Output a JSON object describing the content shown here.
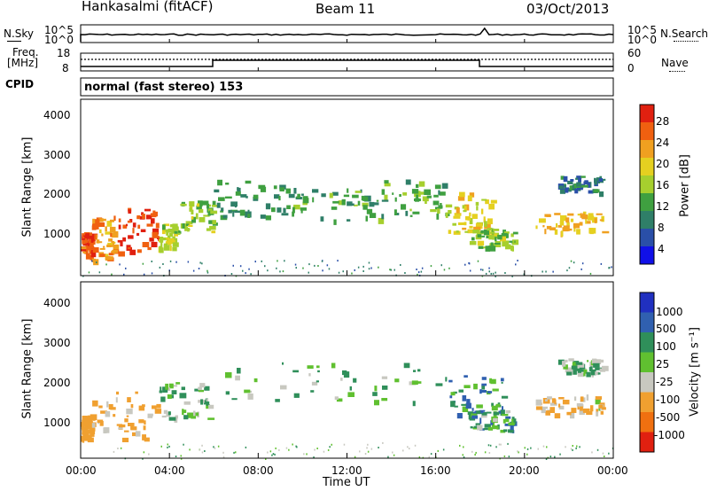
{
  "header": {
    "station": "Hankasalmi (fitACF)",
    "beam": "Beam 11",
    "date": "03/Oct/2013"
  },
  "noise_panel": {
    "left_label": "N.Sky",
    "right_label": "N.Search",
    "ticks": [
      "10^5",
      "10^0"
    ]
  },
  "freq_panel": {
    "left_label_1": "Freq.",
    "left_label_2": "[MHz]",
    "left_ticks": [
      "18",
      "8"
    ],
    "right_ticks": [
      "60",
      "0"
    ],
    "right_label": "Nave",
    "cpid_label": "CPID",
    "mode": "normal (fast stereo) 153"
  },
  "time_axis": {
    "ticks": [
      "00:00",
      "04:00",
      "08:00",
      "12:00",
      "16:00",
      "20:00",
      "00:00"
    ],
    "label": "Time UT"
  },
  "chart_data": [
    {
      "type": "heatmap",
      "name": "power",
      "ylabel": "Slant Range [km]",
      "yticks": [
        "1000",
        "2000",
        "3000",
        "4000"
      ],
      "ylim": [
        200,
        4600
      ],
      "xlim": [
        0,
        24
      ],
      "colorbar": {
        "label": "Power [dB]",
        "ticks": [
          "4",
          "8",
          "12",
          "16",
          "20",
          "24",
          "28"
        ],
        "range": [
          0,
          30
        ],
        "colors": [
          "#1010e8",
          "#2a4fa8",
          "#2f7f68",
          "#3fa040",
          "#a6cf2e",
          "#e5d020",
          "#f0a020",
          "#f06010",
          "#e02010"
        ]
      },
      "regions": [
        {
          "t0": 0.0,
          "t1": 0.5,
          "r0": 700,
          "r1": 1300,
          "value": 26
        },
        {
          "t0": 0.5,
          "t1": 1.5,
          "r0": 600,
          "r1": 1700,
          "value": 22
        },
        {
          "t0": 1.5,
          "t1": 3.5,
          "r0": 800,
          "r1": 1900,
          "value": 27
        },
        {
          "t0": 3.5,
          "t1": 4.2,
          "r0": 900,
          "r1": 1500,
          "value": 16
        },
        {
          "t0": 4.2,
          "t1": 6.0,
          "r0": 1300,
          "r1": 2100,
          "value": 14
        },
        {
          "t0": 6.0,
          "t1": 9.5,
          "r0": 1700,
          "r1": 2600,
          "value": 10
        },
        {
          "t0": 9.5,
          "t1": 13.5,
          "r0": 1600,
          "r1": 2400,
          "value": 11
        },
        {
          "t0": 13.5,
          "t1": 16.5,
          "r0": 1700,
          "r1": 2600,
          "value": 12
        },
        {
          "t0": 16.5,
          "t1": 18.5,
          "r0": 1300,
          "r1": 2300,
          "value": 18
        },
        {
          "t0": 17.5,
          "t1": 19.5,
          "r0": 900,
          "r1": 1400,
          "value": 14
        },
        {
          "t0": 20.5,
          "t1": 23.5,
          "r0": 1300,
          "r1": 1800,
          "value": 20
        },
        {
          "t0": 21.5,
          "t1": 23.5,
          "r0": 2300,
          "r1": 2700,
          "value": 8
        }
      ]
    },
    {
      "type": "heatmap",
      "name": "velocity",
      "ylabel": "Slant Range [km]",
      "yticks": [
        "1000",
        "2000",
        "3000",
        "4000"
      ],
      "ylim": [
        200,
        4600
      ],
      "xlim": [
        0,
        24
      ],
      "colorbar": {
        "label": "Velocity [m s⁻¹]",
        "ticks": [
          "1000",
          "500",
          "100",
          "25",
          "-25",
          "-100",
          "-500",
          "-1000"
        ],
        "colors": [
          "#2030c0",
          "#3060b0",
          "#2f8f5a",
          "#60c030",
          "#c8c8c0",
          "#f0a030",
          "#f07010",
          "#e02010"
        ]
      },
      "regions": [
        {
          "t0": 0.0,
          "t1": 0.5,
          "r0": 700,
          "r1": 1300,
          "value": -300
        },
        {
          "t0": 0.5,
          "t1": 3.5,
          "r0": 700,
          "r1": 1900,
          "value": -150
        },
        {
          "t0": 3.5,
          "t1": 6.0,
          "r0": 1200,
          "r1": 2100,
          "value": 0
        },
        {
          "t0": 6.0,
          "t1": 16.5,
          "r0": 1600,
          "r1": 2600,
          "value": 0
        },
        {
          "t0": 16.5,
          "t1": 19.0,
          "r0": 1300,
          "r1": 2300,
          "value": 80
        },
        {
          "t0": 17.5,
          "t1": 19.5,
          "r0": 900,
          "r1": 1400,
          "value": 60
        },
        {
          "t0": 20.5,
          "t1": 23.5,
          "r0": 1300,
          "r1": 1800,
          "value": -120
        },
        {
          "t0": 21.5,
          "t1": 23.5,
          "r0": 2300,
          "r1": 2700,
          "value": 0
        }
      ]
    }
  ]
}
